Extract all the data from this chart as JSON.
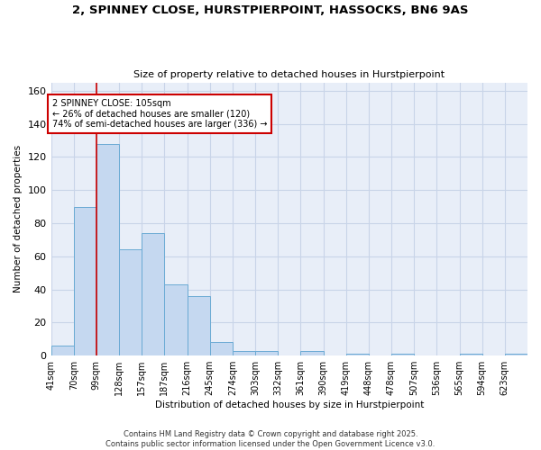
{
  "title": "2, SPINNEY CLOSE, HURSTPIERPOINT, HASSOCKS, BN6 9AS",
  "subtitle": "Size of property relative to detached houses in Hurstpierpoint",
  "xlabel": "Distribution of detached houses by size in Hurstpierpoint",
  "ylabel": "Number of detached properties",
  "bin_labels": [
    "41sqm",
    "70sqm",
    "99sqm",
    "128sqm",
    "157sqm",
    "187sqm",
    "216sqm",
    "245sqm",
    "274sqm",
    "303sqm",
    "332sqm",
    "361sqm",
    "390sqm",
    "419sqm",
    "448sqm",
    "478sqm",
    "507sqm",
    "536sqm",
    "565sqm",
    "594sqm",
    "623sqm"
  ],
  "bin_heights": [
    6,
    90,
    128,
    64,
    74,
    43,
    36,
    8,
    3,
    3,
    0,
    3,
    0,
    1,
    0,
    1,
    0,
    0,
    1,
    0,
    1
  ],
  "bar_color": "#c5d8f0",
  "bar_edge_color": "#6aaad4",
  "annotation_text": "2 SPINNEY CLOSE: 105sqm\n← 26% of detached houses are smaller (120)\n74% of semi-detached houses are larger (336) →",
  "annotation_box_color": "white",
  "annotation_box_edge_color": "#cc0000",
  "red_line_color": "#cc0000",
  "ylim": [
    0,
    165
  ],
  "yticks": [
    0,
    20,
    40,
    60,
    80,
    100,
    120,
    140,
    160
  ],
  "grid_color": "#c8d4e8",
  "bg_color": "#e8eef8",
  "footer": "Contains HM Land Registry data © Crown copyright and database right 2025.\nContains public sector information licensed under the Open Government Licence v3.0."
}
